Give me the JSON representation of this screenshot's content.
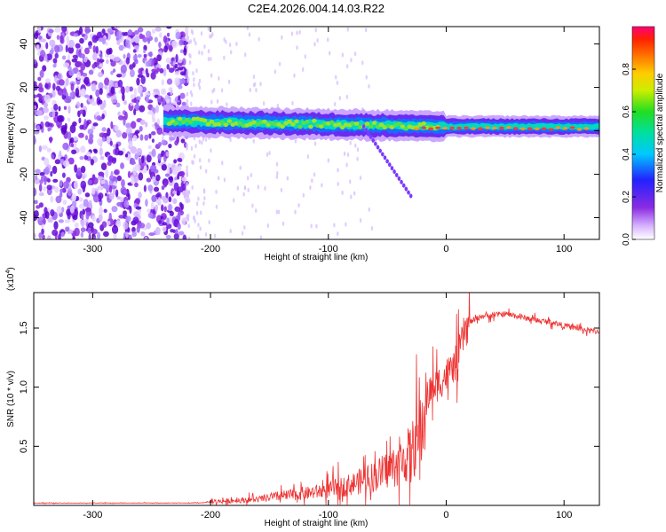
{
  "title": "C2E4.2026.004.14.03.R22",
  "chart_data": [
    {
      "type": "heatmap",
      "xlabel": "Height of straight line (km)",
      "ylabel": "Frequency (Hz)",
      "xlim": [
        -350,
        130
      ],
      "ylim": [
        -50,
        48
      ],
      "xticks": [
        -300,
        -200,
        -100,
        0,
        100
      ],
      "yticks": [
        -40,
        -20,
        0,
        20,
        40
      ],
      "colorbar": {
        "label": "Normalized spectral amplitude",
        "range": [
          0.0,
          1.0
        ],
        "ticks": [
          "0.0",
          "0.2",
          "0.4",
          "0.6",
          "0.8"
        ]
      },
      "features": {
        "noise_region_x": [
          -350,
          -220
        ],
        "signal_band_start_x": -240,
        "signal_center_freq": 2,
        "signal_tail_x": -70,
        "signal_tail_freq": -30
      }
    },
    {
      "type": "line",
      "xlabel": "Height of straight line (km)",
      "ylabel": "SNR (10 * v/v)",
      "y_multiplier": "(x10^4)",
      "multiplier_base": "(x10",
      "multiplier_exp": "4",
      "xlim": [
        -350,
        130
      ],
      "ylim": [
        0,
        1.8
      ],
      "xticks": [
        -300,
        -200,
        -100,
        0,
        100
      ],
      "yticks": [
        "0.5",
        "1.0",
        "1.5"
      ],
      "color": "#ee3333",
      "series": [
        {
          "name": "SNR",
          "x": [
            -350,
            -300,
            -250,
            -210,
            -200,
            -180,
            -160,
            -140,
            -120,
            -100,
            -80,
            -60,
            -50,
            -40,
            -30,
            -22,
            -18,
            -15,
            -10,
            -5,
            0,
            5,
            10,
            15,
            20,
            30,
            40,
            50,
            60,
            70,
            80,
            90,
            100,
            110,
            120,
            130
          ],
          "values": [
            0.02,
            0.02,
            0.02,
            0.02,
            0.03,
            0.04,
            0.05,
            0.08,
            0.1,
            0.13,
            0.18,
            0.25,
            0.3,
            0.35,
            0.45,
            0.6,
            0.8,
            0.95,
            1.0,
            1.05,
            1.1,
            1.15,
            1.25,
            1.45,
            1.55,
            1.6,
            1.61,
            1.62,
            1.6,
            1.58,
            1.56,
            1.55,
            1.52,
            1.5,
            1.48,
            1.47
          ]
        }
      ]
    }
  ]
}
